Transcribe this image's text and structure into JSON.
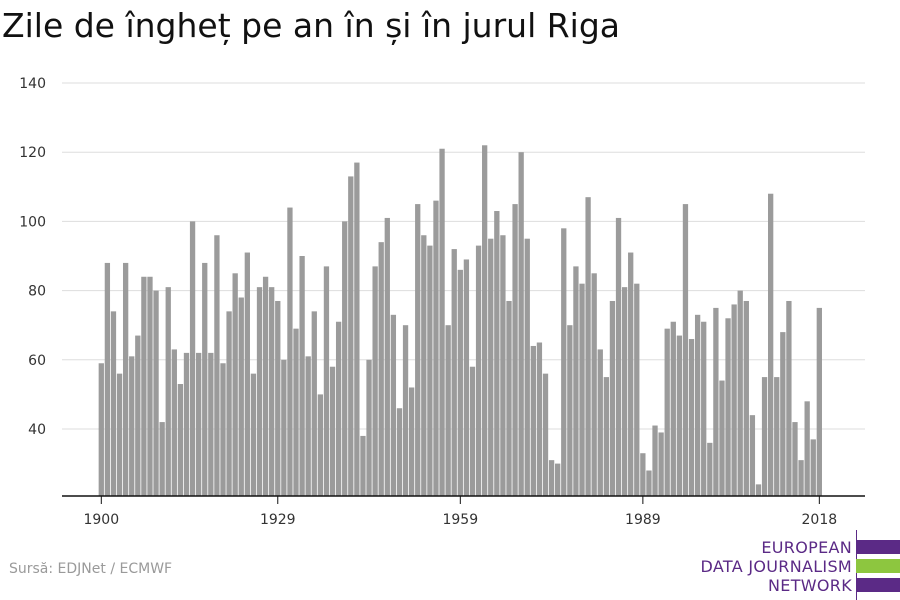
{
  "title": "Zile de îngheț pe an în și în jurul Riga",
  "source": "Sursă: EDJNet / ECMWF",
  "logo": {
    "lines": [
      "EUROPEAN",
      "DATA JOURNALISM",
      "NETWORK"
    ],
    "purple": "#5b2a86",
    "green": "#8dc63f"
  },
  "chart_data": {
    "type": "bar",
    "title": "Zile de îngheț pe an în și în jurul Riga",
    "xlabel": "",
    "ylabel": "",
    "bar_color": "#9b9b9b",
    "ylim": [
      20,
      140
    ],
    "yticks": [
      40,
      60,
      80,
      100,
      120,
      140
    ],
    "xticks": [
      1900,
      1929,
      1959,
      1989,
      2018
    ],
    "grid": true,
    "categories": [
      1900,
      1901,
      1902,
      1903,
      1904,
      1905,
      1906,
      1907,
      1908,
      1909,
      1910,
      1911,
      1912,
      1913,
      1914,
      1915,
      1916,
      1917,
      1918,
      1919,
      1920,
      1921,
      1922,
      1923,
      1924,
      1925,
      1926,
      1927,
      1928,
      1929,
      1930,
      1931,
      1932,
      1933,
      1934,
      1935,
      1936,
      1937,
      1938,
      1939,
      1940,
      1941,
      1942,
      1943,
      1944,
      1945,
      1946,
      1947,
      1948,
      1949,
      1950,
      1951,
      1952,
      1953,
      1954,
      1955,
      1956,
      1957,
      1958,
      1959,
      1960,
      1961,
      1962,
      1963,
      1964,
      1965,
      1966,
      1967,
      1968,
      1969,
      1970,
      1971,
      1972,
      1973,
      1974,
      1975,
      1976,
      1977,
      1978,
      1979,
      1980,
      1981,
      1982,
      1983,
      1984,
      1985,
      1986,
      1987,
      1988,
      1989,
      1990,
      1991,
      1992,
      1993,
      1994,
      1995,
      1996,
      1997,
      1998,
      1999,
      2000,
      2001,
      2002,
      2003,
      2004,
      2005,
      2006,
      2007,
      2008,
      2009,
      2010,
      2011,
      2012,
      2013,
      2014,
      2015,
      2016,
      2017,
      2018
    ],
    "values": [
      59,
      88,
      74,
      56,
      88,
      61,
      67,
      84,
      84,
      80,
      42,
      81,
      63,
      53,
      62,
      100,
      62,
      88,
      62,
      96,
      59,
      74,
      85,
      78,
      91,
      56,
      81,
      84,
      81,
      77,
      60,
      104,
      69,
      90,
      61,
      74,
      50,
      87,
      58,
      71,
      100,
      113,
      117,
      38,
      60,
      87,
      94,
      101,
      73,
      46,
      70,
      52,
      105,
      96,
      93,
      106,
      121,
      70,
      92,
      86,
      89,
      58,
      93,
      122,
      95,
      103,
      96,
      77,
      105,
      120,
      95,
      64,
      65,
      56,
      31,
      30,
      98,
      70,
      87,
      82,
      107,
      85,
      63,
      55,
      77,
      101,
      81,
      91,
      82,
      33,
      28,
      41,
      39,
      69,
      71,
      67,
      105,
      66,
      73,
      71,
      36,
      75,
      54,
      72,
      76,
      80,
      77,
      44,
      24,
      55,
      108,
      55,
      68,
      77,
      42,
      31,
      48,
      37,
      75
    ]
  }
}
